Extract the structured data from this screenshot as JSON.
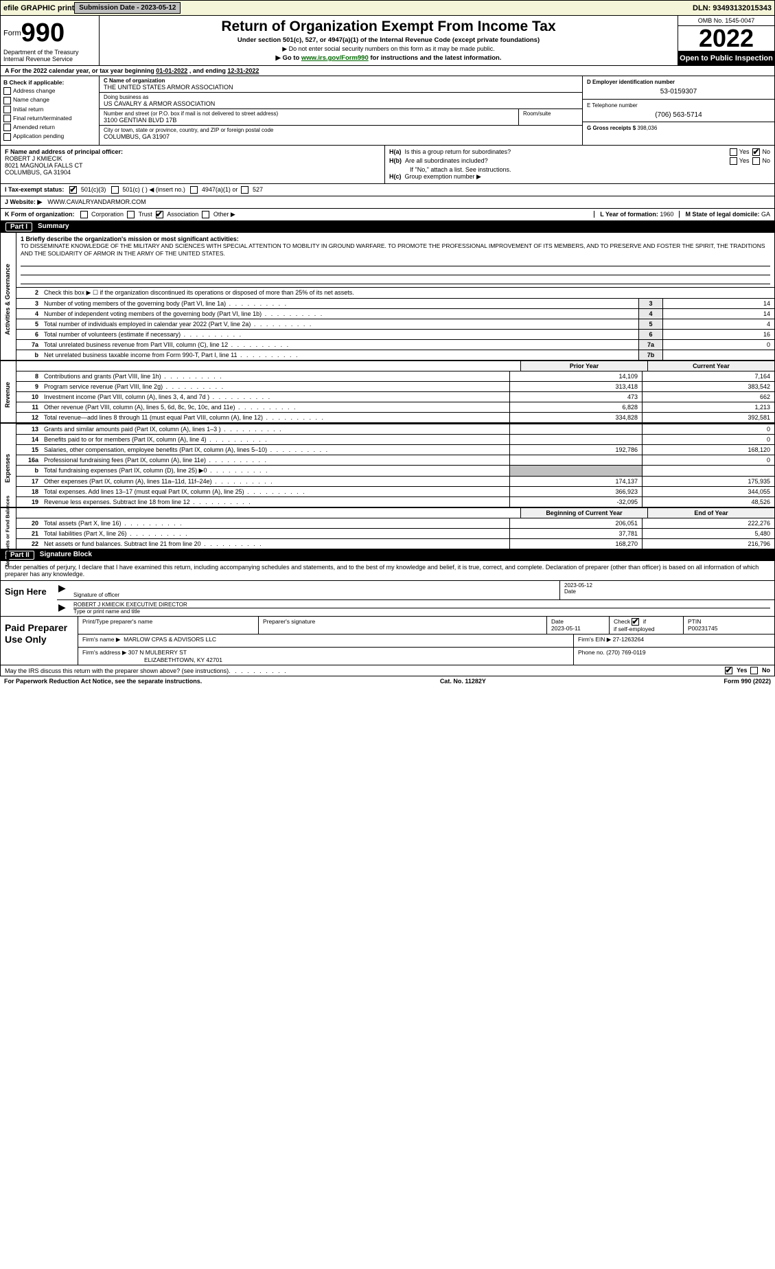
{
  "meta": {
    "efile_label": "efile GRAPHIC print",
    "submission_label": "Submission Date - 2023-05-12",
    "dln_label": "DLN: 93493132015343"
  },
  "header": {
    "form_prefix": "Form",
    "form_number": "990",
    "title": "Return of Organization Exempt From Income Tax",
    "subtitle": "Under section 501(c), 527, or 4947(a)(1) of the Internal Revenue Code (except private foundations)",
    "note_ssn": "▶ Do not enter social security numbers on this form as it may be made public.",
    "note_goto_prefix": "▶ Go to ",
    "note_goto_link": "www.irs.gov/Form990",
    "note_goto_suffix": " for instructions and the latest information.",
    "dept": "Department of the Treasury",
    "irs": "Internal Revenue Service",
    "omb": "OMB No. 1545-0047",
    "year": "2022",
    "open_public": "Open to Public Inspection"
  },
  "row_a": {
    "label": "A For the 2022 calendar year, or tax year beginning ",
    "begin": "01-01-2022",
    "mid": " , and ending ",
    "end": "12-31-2022"
  },
  "col_b": {
    "header": "B Check if applicable:",
    "items": [
      "Address change",
      "Name change",
      "Initial return",
      "Final return/terminated",
      "Amended return",
      "Application pending"
    ]
  },
  "col_c": {
    "name_label": "C Name of organization",
    "name": "THE UNITED STATES ARMOR ASSOCIATION",
    "dba_label": "Doing business as",
    "dba": "US CAVALRY & ARMOR ASSOCIATION",
    "street_label": "Number and street (or P.O. box if mail is not delivered to street address)",
    "street": "3100 GENTIAN BLVD 17B",
    "room_label": "Room/suite",
    "city_label": "City or town, state or province, country, and ZIP or foreign postal code",
    "city": "COLUMBUS, GA  31907"
  },
  "col_d": {
    "ein_label": "D Employer identification number",
    "ein": "53-0159307",
    "phone_label": "E Telephone number",
    "phone": "(706) 563-5714",
    "gross_label": "G Gross receipts $",
    "gross": "398,036"
  },
  "section_f": {
    "label": "F Name and address of principal officer:",
    "name": "ROBERT J KMIECIK",
    "addr1": "8021 MAGNOLIA FALLS CT",
    "addr2": "COLUMBUS, GA  31904"
  },
  "section_h": {
    "ha_label": "H(a)  Is this a group return for subordinates?",
    "hb_label": "H(b)  Are all subordinates included?",
    "hb_note": "If \"No,\" attach a list. See instructions.",
    "hc_label": "H(c)  Group exemption number ▶",
    "yes": "Yes",
    "no": "No"
  },
  "row_i": {
    "label": "I  Tax-exempt status:",
    "opt1": "501(c)(3)",
    "opt2": "501(c) (   ) ◀ (insert no.)",
    "opt3": "4947(a)(1) or",
    "opt4": "527"
  },
  "row_j": {
    "label": "J   Website: ▶",
    "value": "WWW.CAVALRYANDARMOR.COM"
  },
  "row_k": {
    "label": "K Form of organization:",
    "opts": [
      "Corporation",
      "Trust",
      "Association",
      "Other ▶"
    ],
    "l_label": "L Year of formation:",
    "l_val": "1960",
    "m_label": "M State of legal domicile:",
    "m_val": "GA"
  },
  "part1": {
    "header_num": "Part I",
    "header_title": "Summary"
  },
  "gov": {
    "vert": "Activities & Governance",
    "line1_label": "1  Briefly describe the organization's mission or most significant activities:",
    "mission": "TO DISSEMINATE KNOWLEDGE OF THE MILITARY AND SCIENCES WITH SPECIAL ATTENTION TO MOBILITY IN GROUND WARFARE. TO PROMOTE THE PROFESSIONAL IMPROVEMENT OF ITS MEMBERS, AND TO PRESERVE AND FOSTER THE SPIRIT, THE TRADITIONS AND THE SOLIDARITY OF ARMOR IN THE ARMY OF THE UNITED STATES.",
    "line2": "Check this box ▶ ☐ if the organization discontinued its operations or disposed of more than 25% of its net assets.",
    "rows": [
      {
        "n": "3",
        "d": "Number of voting members of the governing body (Part VI, line 1a)",
        "k": "3",
        "v": "14"
      },
      {
        "n": "4",
        "d": "Number of independent voting members of the governing body (Part VI, line 1b)",
        "k": "4",
        "v": "14"
      },
      {
        "n": "5",
        "d": "Total number of individuals employed in calendar year 2022 (Part V, line 2a)",
        "k": "5",
        "v": "4"
      },
      {
        "n": "6",
        "d": "Total number of volunteers (estimate if necessary)",
        "k": "6",
        "v": "16"
      },
      {
        "n": "7a",
        "d": "Total unrelated business revenue from Part VIII, column (C), line 12",
        "k": "7a",
        "v": "0"
      },
      {
        "n": "b",
        "d": "Net unrelated business taxable income from Form 990-T, Part I, line 11",
        "k": "7b",
        "v": ""
      }
    ]
  },
  "twocol_headers": {
    "prior": "Prior Year",
    "current": "Current Year",
    "begin": "Beginning of Current Year",
    "end": "End of Year"
  },
  "revenue": {
    "vert": "Revenue",
    "rows": [
      {
        "n": "8",
        "d": "Contributions and grants (Part VIII, line 1h)",
        "v1": "14,109",
        "v2": "7,164"
      },
      {
        "n": "9",
        "d": "Program service revenue (Part VIII, line 2g)",
        "v1": "313,418",
        "v2": "383,542"
      },
      {
        "n": "10",
        "d": "Investment income (Part VIII, column (A), lines 3, 4, and 7d )",
        "v1": "473",
        "v2": "662"
      },
      {
        "n": "11",
        "d": "Other revenue (Part VIII, column (A), lines 5, 6d, 8c, 9c, 10c, and 11e)",
        "v1": "6,828",
        "v2": "1,213"
      },
      {
        "n": "12",
        "d": "Total revenue—add lines 8 through 11 (must equal Part VIII, column (A), line 12)",
        "v1": "334,828",
        "v2": "392,581"
      }
    ]
  },
  "expenses": {
    "vert": "Expenses",
    "rows": [
      {
        "n": "13",
        "d": "Grants and similar amounts paid (Part IX, column (A), lines 1–3 )",
        "v1": "",
        "v2": "0"
      },
      {
        "n": "14",
        "d": "Benefits paid to or for members (Part IX, column (A), line 4)",
        "v1": "",
        "v2": "0"
      },
      {
        "n": "15",
        "d": "Salaries, other compensation, employee benefits (Part IX, column (A), lines 5–10)",
        "v1": "192,786",
        "v2": "168,120"
      },
      {
        "n": "16a",
        "d": "Professional fundraising fees (Part IX, column (A), line 11e)",
        "v1": "",
        "v2": "0"
      },
      {
        "n": "b",
        "d": "Total fundraising expenses (Part IX, column (D), line 25) ▶0",
        "v1": "shaded",
        "v2": ""
      },
      {
        "n": "17",
        "d": "Other expenses (Part IX, column (A), lines 11a–11d, 11f–24e)",
        "v1": "174,137",
        "v2": "175,935"
      },
      {
        "n": "18",
        "d": "Total expenses. Add lines 13–17 (must equal Part IX, column (A), line 25)",
        "v1": "366,923",
        "v2": "344,055"
      },
      {
        "n": "19",
        "d": "Revenue less expenses. Subtract line 18 from line 12",
        "v1": "-32,095",
        "v2": "48,526"
      }
    ]
  },
  "netassets": {
    "vert": "Net Assets or Fund Balances",
    "rows": [
      {
        "n": "20",
        "d": "Total assets (Part X, line 16)",
        "v1": "206,051",
        "v2": "222,276"
      },
      {
        "n": "21",
        "d": "Total liabilities (Part X, line 26)",
        "v1": "37,781",
        "v2": "5,480"
      },
      {
        "n": "22",
        "d": "Net assets or fund balances. Subtract line 21 from line 20",
        "v1": "168,270",
        "v2": "216,796"
      }
    ]
  },
  "part2": {
    "header_num": "Part II",
    "header_title": "Signature Block",
    "penalty": "Under penalties of perjury, I declare that I have examined this return, including accompanying schedules and statements, and to the best of my knowledge and belief, it is true, correct, and complete. Declaration of preparer (other than officer) is based on all information of which preparer has any knowledge."
  },
  "sign": {
    "left": "Sign Here",
    "sig_label": "Signature of officer",
    "date_label": "Date",
    "date": "2023-05-12",
    "name": "ROBERT J KMIECIK  EXECUTIVE DIRECTOR",
    "name_label": "Type or print name and title"
  },
  "prep": {
    "left": "Paid Preparer Use Only",
    "h1": "Print/Type preparer's name",
    "h2": "Preparer's signature",
    "h3": "Date",
    "date": "2023-05-11",
    "h4_label": "Check",
    "h4_label2": "if self-employed",
    "h5": "PTIN",
    "ptin": "P00231745",
    "firm_label": "Firm's name    ▶",
    "firm": "MARLOW CPAS & ADVISORS LLC",
    "ein_label": "Firm's EIN ▶",
    "ein": "27-1263264",
    "addr_label": "Firm's address ▶",
    "addr1": "307 N MULBERRY ST",
    "addr2": "ELIZABETHTOWN, KY  42701",
    "phone_label": "Phone no.",
    "phone": "(270) 769-0119"
  },
  "footer": {
    "discuss": "May the IRS discuss this return with the preparer shown above? (see instructions)",
    "yes": "Yes",
    "no": "No",
    "pra": "For Paperwork Reduction Act Notice, see the separate instructions.",
    "cat": "Cat. No. 11282Y",
    "form": "Form 990 (2022)"
  }
}
